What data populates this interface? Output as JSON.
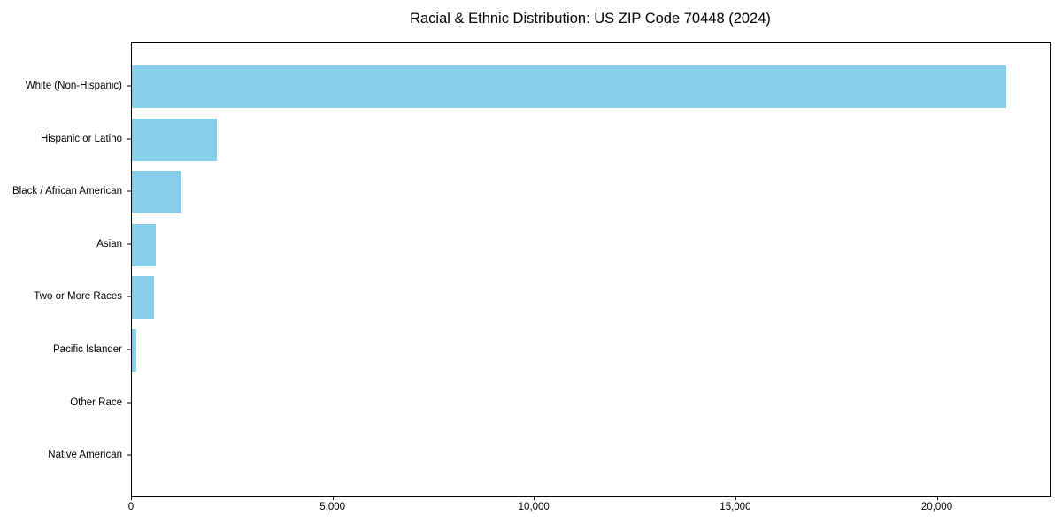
{
  "chart_data": {
    "type": "bar",
    "orientation": "horizontal",
    "title": "Racial & Ethnic Distribution: US ZIP Code 70448 (2024)",
    "categories": [
      "White (Non-Hispanic)",
      "Hispanic or Latino",
      "Black / African American",
      "Asian",
      "Two or More Races",
      "Pacific Islander",
      "Other Race",
      "Native American"
    ],
    "values": [
      21700,
      2100,
      1230,
      600,
      555,
      105,
      0,
      0
    ],
    "xlabel": "",
    "ylabel": "",
    "xlim": [
      0,
      22800
    ],
    "xticks": [
      0,
      5000,
      10000,
      15000,
      20000
    ],
    "xtick_labels": [
      "0",
      "5,000",
      "10,000",
      "15,000",
      "20,000"
    ],
    "bar_color": "#87CEEB",
    "background_color": "#FFFFFF",
    "spine_color": "#000000",
    "grid": false,
    "legend": false
  }
}
